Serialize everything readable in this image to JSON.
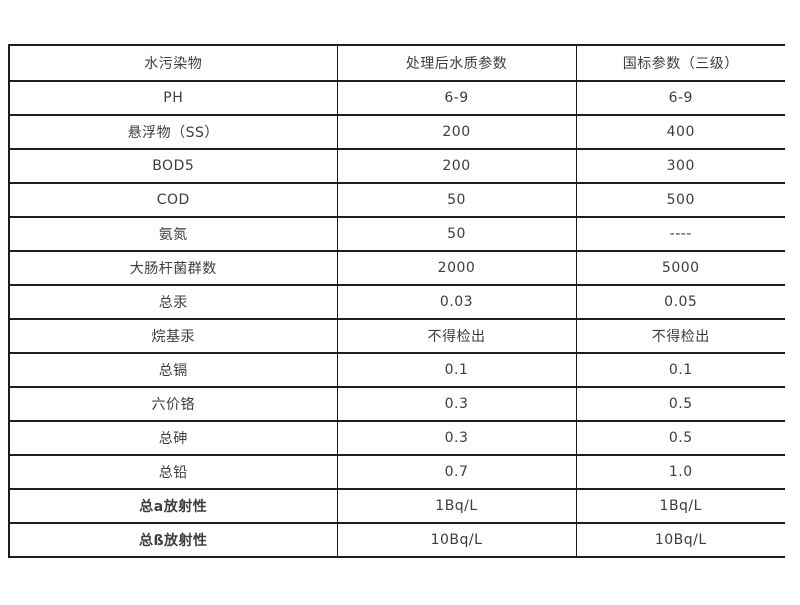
{
  "table": {
    "headers": {
      "pollutant": "水污染物",
      "treated": "处理后水质参数",
      "standard": "国标参数（三级）"
    },
    "rows": [
      {
        "name": "PH",
        "treated": "6-9",
        "standard": "6-9"
      },
      {
        "name": "悬浮物（SS）",
        "treated": "200",
        "standard": "400"
      },
      {
        "name": "BOD5",
        "treated": "200",
        "standard": "300"
      },
      {
        "name": "COD",
        "treated": "50",
        "standard": "500"
      },
      {
        "name": "氨氮",
        "treated": "50",
        "standard": "----"
      },
      {
        "name": "大肠杆菌群数",
        "treated": "2000",
        "standard": "5000"
      },
      {
        "name": "总汞",
        "treated": "0.03",
        "standard": "0.05"
      },
      {
        "name": "烷基汞",
        "treated": "不得检出",
        "standard": "不得检出"
      },
      {
        "name": "总镉",
        "treated": "0.1",
        "standard": "0.1"
      },
      {
        "name": "六价铬",
        "treated": "0.3",
        "standard": "0.5"
      },
      {
        "name": "总砷",
        "treated": "0.3",
        "standard": "0.5"
      },
      {
        "name": "总铅",
        "treated": "0.7",
        "standard": "1.0"
      },
      {
        "name": "总a放射性",
        "treated": "1Bq/L",
        "standard": "1Bq/L"
      },
      {
        "name": "总ß放射性",
        "treated": "10Bq/L",
        "standard": "10Bq/L"
      }
    ],
    "colors": {
      "border": "#1c1c1c",
      "text": "#3d3d3d",
      "background": "#ffffff"
    }
  }
}
